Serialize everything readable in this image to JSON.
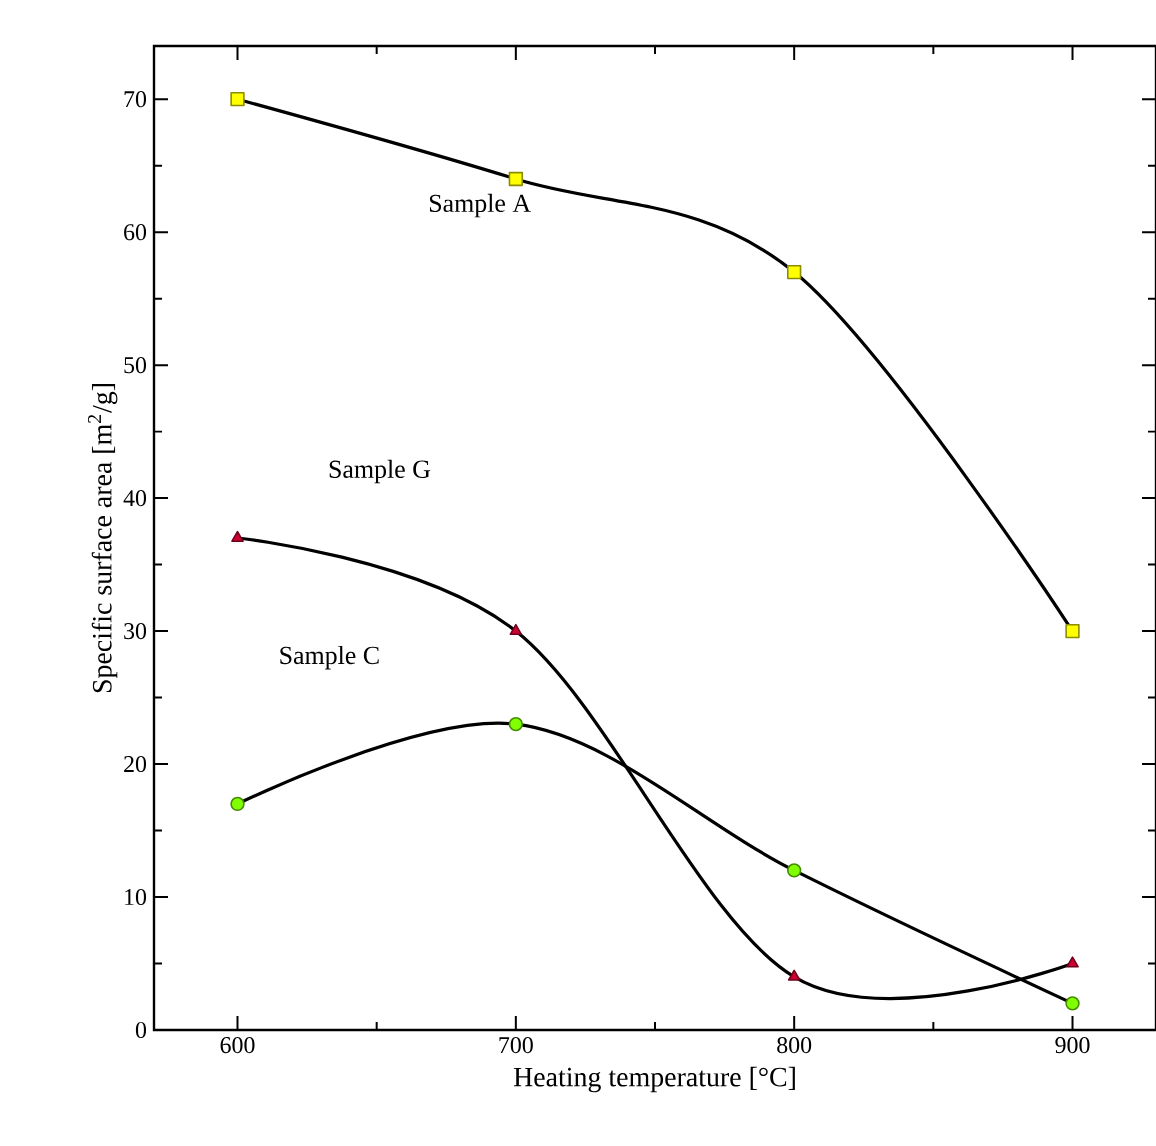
{
  "chart_data": {
    "type": "line",
    "xlabel": "Heating temperature [°C]",
    "ylabel": "Specific surface area [m$^{2}$/g]",
    "x": [
      600,
      700,
      800,
      900
    ],
    "series": [
      {
        "name": "Sample A",
        "color": "#ffff00",
        "marker": "square",
        "values": [
          70,
          64,
          57,
          30
        ]
      },
      {
        "name": "Sample G",
        "color": "#cc0033",
        "marker": "triangle",
        "values": [
          37,
          30,
          4,
          5
        ]
      },
      {
        "name": "Sample C",
        "color": "#80ff00",
        "marker": "circle",
        "values": [
          17,
          23,
          12,
          2
        ]
      }
    ],
    "xlim": [
      570,
      930
    ],
    "ylim": [
      0,
      74
    ],
    "xticks": [
      600,
      700,
      800,
      900
    ],
    "yticks": [
      0,
      10,
      20,
      30,
      40,
      50,
      60,
      70
    ],
    "grid": false
  }
}
